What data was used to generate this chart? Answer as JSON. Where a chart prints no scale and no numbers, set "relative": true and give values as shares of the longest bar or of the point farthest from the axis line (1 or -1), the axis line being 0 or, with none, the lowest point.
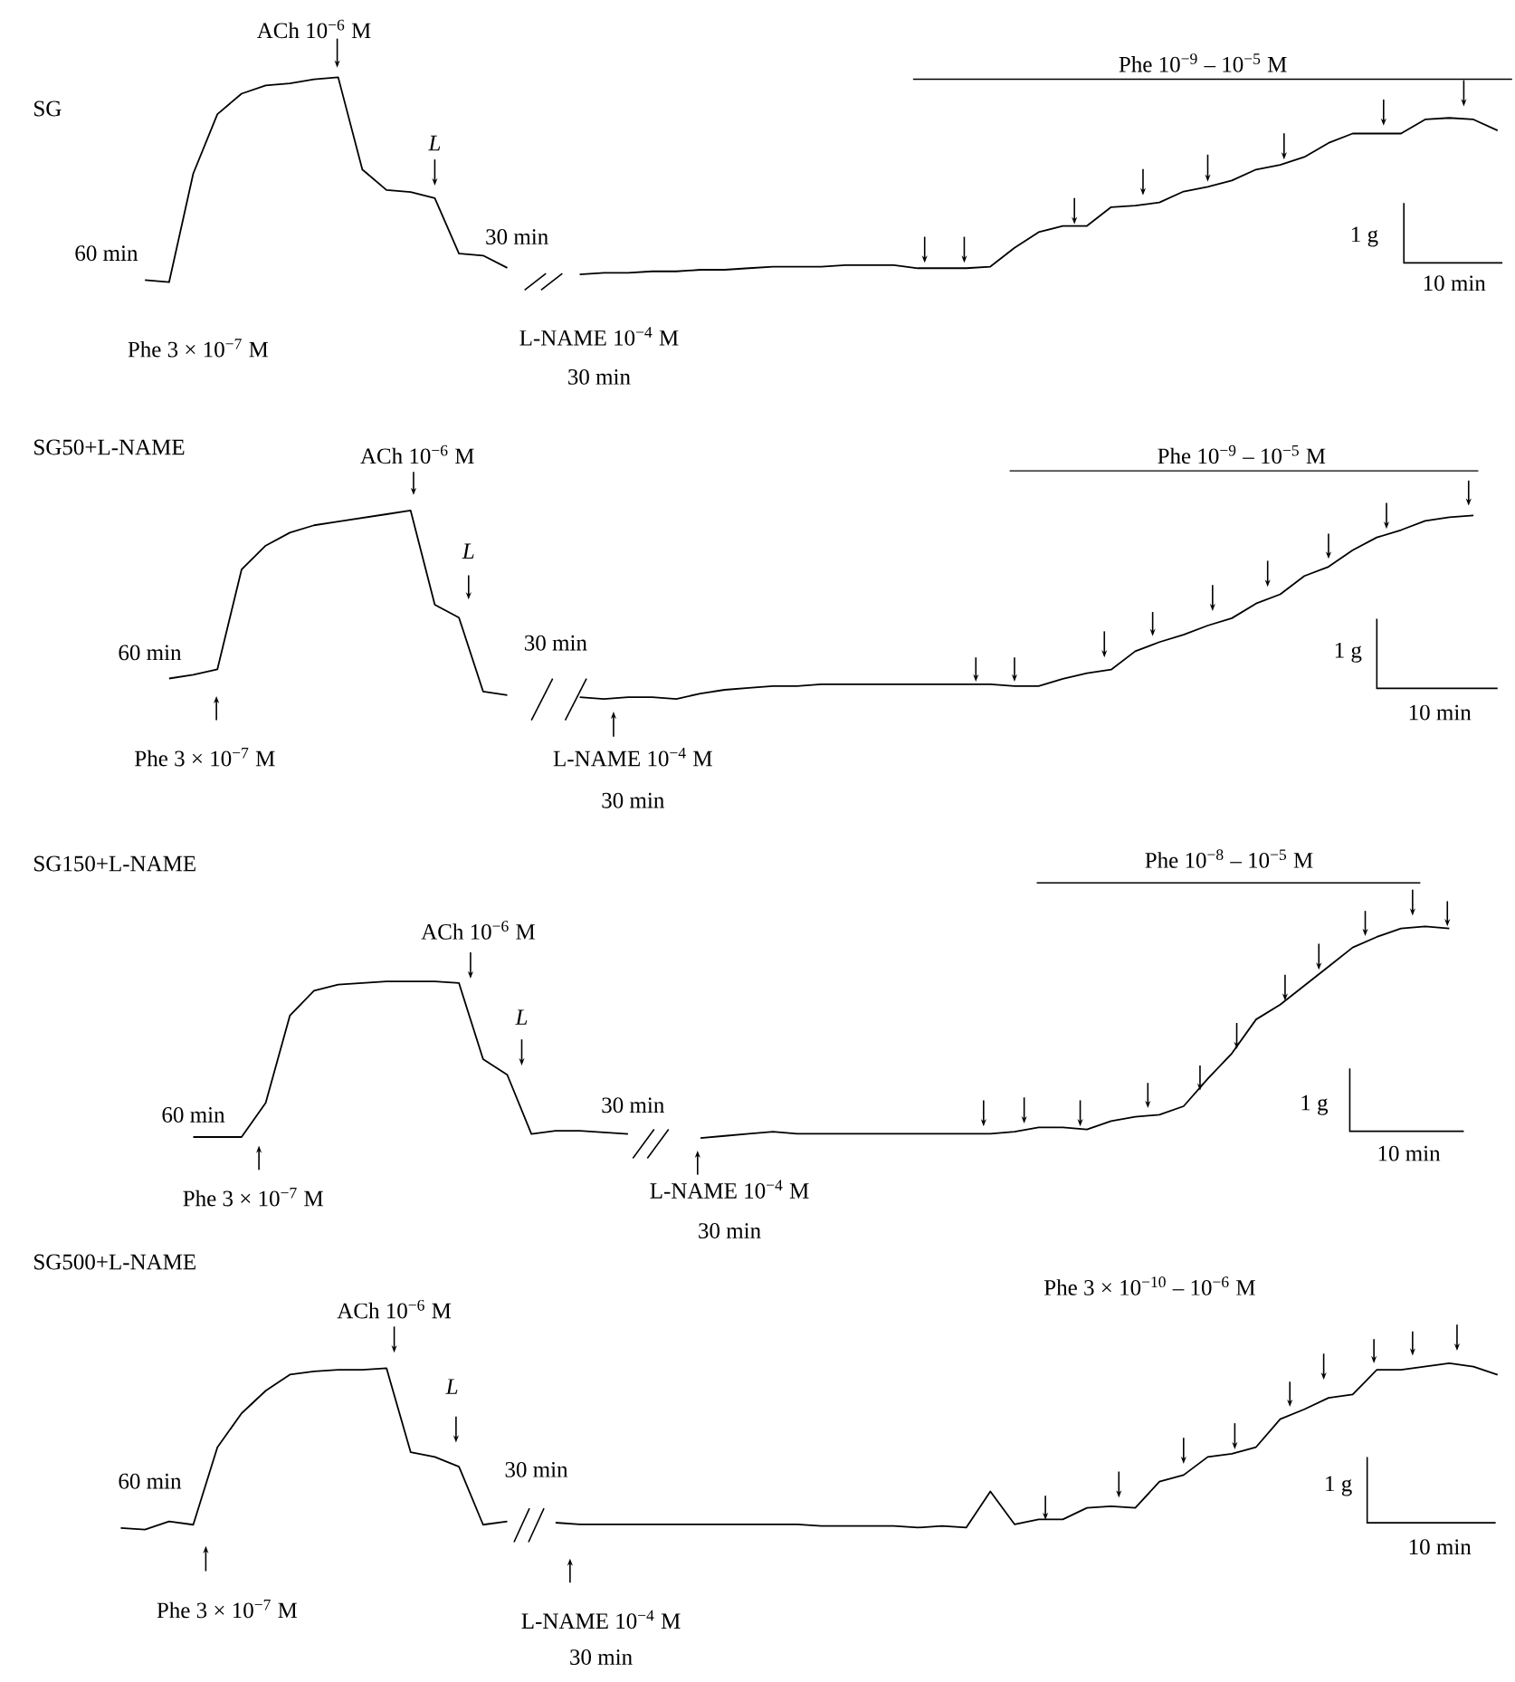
{
  "chart_data": [
    {
      "type": "line",
      "relative": true,
      "title": "SG",
      "color": "#000000",
      "categories": [
        null,
        null,
        null,
        null,
        null,
        null,
        null,
        null,
        null,
        null,
        null,
        null,
        null,
        null,
        null,
        null
      ],
      "values": [
        0.01,
        0,
        0.53,
        0.82,
        0.92,
        0.96,
        0.97,
        0.99,
        1,
        0.55,
        0.45,
        0.44,
        0.41,
        0.14,
        0.13,
        0.07
      ],
      "annotations": [
        "ACh 10$^{−6}$ M",
        "L",
        "60 min",
        "30 min",
        "Phe 3 × 10$^{−7}$ M",
        "L-NAME 10$^{−4}$ M",
        "30 min"
      ]
    },
    {
      "type": "line",
      "relative": true,
      "color": "#000000",
      "categories": [
        null,
        null,
        null,
        null,
        null,
        null,
        null,
        null,
        null,
        null,
        null,
        null,
        null,
        null,
        null,
        null,
        null,
        null,
        null,
        null,
        null,
        null,
        null,
        null,
        null,
        null,
        null,
        null,
        null,
        null,
        null,
        null,
        null,
        null,
        null,
        null,
        null,
        null,
        null
      ],
      "values": [
        0,
        0.01,
        0.01,
        0.02,
        0.02,
        0.03,
        0.03,
        0.04,
        0.05,
        0.05,
        0.05,
        0.06,
        0.06,
        0.06,
        0.04,
        0.04,
        0.04,
        0.05,
        0.17,
        0.27,
        0.31,
        0.31,
        0.43,
        0.44,
        0.46,
        0.53,
        0.56,
        0.6,
        0.67,
        0.7,
        0.75,
        0.84,
        0.9,
        0.9,
        0.9,
        0.99,
        1,
        0.99,
        0.92
      ],
      "annotations": [
        "Phe 10$^{−9}$  –  10$^{−5}$ M",
        "1 g",
        "10 min"
      ]
    },
    {
      "type": "line",
      "relative": true,
      "title": "SG50+L-NAME",
      "color": "#000000",
      "categories": [
        null,
        null,
        null,
        null,
        null,
        null,
        null,
        null,
        null,
        null,
        null,
        null,
        null,
        null,
        null
      ],
      "values": [
        0.09,
        0.11,
        0.14,
        0.68,
        0.81,
        0.88,
        0.92,
        0.94,
        0.96,
        0.98,
        1,
        0.49,
        0.42,
        0.02,
        0
      ],
      "annotations": [
        "ACh 10$^{−6}$ M",
        "L",
        "60 min",
        "30 min",
        "Phe 3 × 10$^{−7}$ M",
        "L-NAME 10$^{−4}$ M",
        "30 min"
      ]
    },
    {
      "type": "line",
      "relative": true,
      "color": "#000000",
      "categories": [
        null,
        null,
        null,
        null,
        null,
        null,
        null,
        null,
        null,
        null,
        null,
        null,
        null,
        null,
        null,
        null,
        null,
        null,
        null,
        null,
        null,
        null,
        null,
        null,
        null,
        null,
        null,
        null,
        null,
        null,
        null,
        null,
        null,
        null,
        null,
        null,
        null,
        null
      ],
      "values": [
        0.01,
        0,
        0.01,
        0.01,
        0,
        0.03,
        0.05,
        0.06,
        0.07,
        0.07,
        0.08,
        0.08,
        0.08,
        0.08,
        0.08,
        0.08,
        0.08,
        0.08,
        0.07,
        0.07,
        0.11,
        0.14,
        0.16,
        0.26,
        0.31,
        0.35,
        0.4,
        0.44,
        0.52,
        0.57,
        0.67,
        0.72,
        0.81,
        0.88,
        0.92,
        0.97,
        0.99,
        1
      ],
      "annotations": [
        "Phe 10$^{−9}$ – 10$^{−5}$ M",
        "1 g",
        "10 min"
      ]
    },
    {
      "type": "line",
      "relative": true,
      "title": "SG150+L-NAME",
      "color": "#000000",
      "categories": [
        null,
        null,
        null,
        null,
        null,
        null,
        null,
        null,
        null,
        null,
        null,
        null,
        null,
        null,
        null,
        null,
        null,
        null,
        null
      ],
      "values": [
        0,
        0,
        0,
        0.22,
        0.78,
        0.94,
        0.98,
        0.99,
        1,
        1,
        1,
        0.99,
        0.5,
        0.4,
        0.02,
        0.04,
        0.04,
        0.03,
        0.02
      ],
      "annotations": [
        "ACh 10$^{−6}$ M",
        "L",
        "60 min",
        "30 min",
        "Phe 3 × 10$^{−7}$ M",
        "L-NAME 10$^{−4}$ M",
        "30 min"
      ]
    },
    {
      "type": "line",
      "relative": true,
      "color": "#000000",
      "categories": [
        null,
        null,
        null,
        null,
        null,
        null,
        null,
        null,
        null,
        null,
        null,
        null,
        null,
        null,
        null,
        null,
        null,
        null,
        null,
        null,
        null,
        null,
        null,
        null,
        null,
        null,
        null,
        null,
        null,
        null,
        null,
        null
      ],
      "values": [
        0,
        0.01,
        0.02,
        0.03,
        0.02,
        0.02,
        0.02,
        0.02,
        0.02,
        0.02,
        0.02,
        0.02,
        0.02,
        0.03,
        0.05,
        0.05,
        0.04,
        0.08,
        0.1,
        0.11,
        0.15,
        0.28,
        0.4,
        0.56,
        0.63,
        0.72,
        0.81,
        0.9,
        0.95,
        0.99,
        1,
        0.99
      ],
      "annotations": [
        "Phe 10$^{−8}$ – 10$^{−5}$ M",
        "1 g",
        "10 min"
      ]
    },
    {
      "type": "line",
      "relative": true,
      "title": "SG500+L-NAME",
      "color": "#000000",
      "categories": [
        null,
        null,
        null,
        null,
        null,
        null,
        null,
        null,
        null,
        null,
        null,
        null,
        null,
        null,
        null,
        null,
        null
      ],
      "values": [
        0.01,
        0,
        0.05,
        0.03,
        0.51,
        0.72,
        0.86,
        0.96,
        0.98,
        0.99,
        0.99,
        1,
        0.48,
        0.45,
        0.39,
        0.03,
        0.05
      ],
      "annotations": [
        "ACh 10$^{−6}$ M",
        "L",
        "60 min",
        "30 min",
        "Phe 3 × 10$^{−7}$ M",
        "L-NAME 10$^{−4}$ M",
        "30 min"
      ]
    },
    {
      "type": "line",
      "relative": true,
      "color": "#000000",
      "categories": [
        null,
        null,
        null,
        null,
        null,
        null,
        null,
        null,
        null,
        null,
        null,
        null,
        null,
        null,
        null,
        null,
        null,
        null,
        null,
        null,
        null,
        null,
        null,
        null,
        null,
        null,
        null,
        null,
        null,
        null,
        null,
        null,
        null,
        null,
        null,
        null,
        null,
        null,
        null,
        null
      ],
      "values": [
        0.03,
        0.02,
        0.02,
        0.02,
        0.02,
        0.02,
        0.02,
        0.02,
        0.02,
        0.02,
        0.02,
        0.01,
        0.01,
        0.01,
        0.01,
        0,
        0.01,
        0,
        0.22,
        0.02,
        0.05,
        0.05,
        0.12,
        0.13,
        0.12,
        0.28,
        0.32,
        0.43,
        0.45,
        0.49,
        0.66,
        0.72,
        0.79,
        0.81,
        0.96,
        0.96,
        0.98,
        1,
        0.98,
        0.93
      ],
      "annotations": [
        "Phe 3 × 10$^{−10}$ –  10$^{−6}$ M",
        "1 g",
        "10 min"
      ]
    }
  ]
}
